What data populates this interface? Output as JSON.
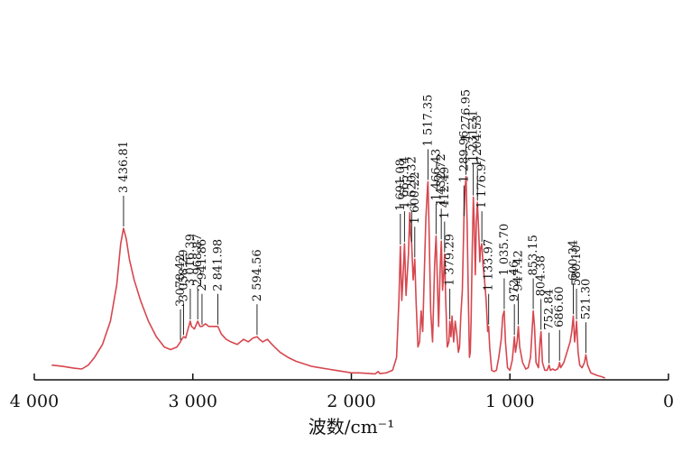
{
  "chart_data": {
    "type": "line",
    "title": "",
    "xlabel": "波数/cm⁻¹",
    "ylabel": "",
    "xlim": [
      4000,
      0
    ],
    "ylim": [
      0,
      100
    ],
    "grid": false,
    "legend": "none",
    "line_color": "#d6474f",
    "x_ticks": [
      {
        "value": 4000,
        "label": "4 000"
      },
      {
        "value": 3000,
        "label": "3 000"
      },
      {
        "value": 2000,
        "label": "2 000"
      },
      {
        "value": 1000,
        "label": "1 000"
      },
      {
        "value": 0,
        "label": "0"
      }
    ],
    "spectrum": [
      [
        3890,
        5
      ],
      [
        3820,
        4.5
      ],
      [
        3750,
        3.8
      ],
      [
        3700,
        3.5
      ],
      [
        3660,
        5
      ],
      [
        3620,
        8
      ],
      [
        3570,
        13
      ],
      [
        3520,
        22
      ],
      [
        3480,
        36
      ],
      [
        3455,
        52
      ],
      [
        3437,
        58
      ],
      [
        3420,
        54
      ],
      [
        3400,
        46
      ],
      [
        3370,
        38
      ],
      [
        3330,
        30
      ],
      [
        3280,
        22
      ],
      [
        3230,
        16
      ],
      [
        3180,
        12
      ],
      [
        3140,
        11
      ],
      [
        3100,
        12
      ],
      [
        3078,
        14
      ],
      [
        3070,
        15
      ],
      [
        3058,
        16
      ],
      [
        3045,
        15.5
      ],
      [
        3030,
        19
      ],
      [
        3016,
        22
      ],
      [
        3008,
        20
      ],
      [
        2990,
        19
      ],
      [
        2969,
        22
      ],
      [
        2955,
        20
      ],
      [
        2942,
        20
      ],
      [
        2920,
        21
      ],
      [
        2900,
        20
      ],
      [
        2870,
        20
      ],
      [
        2842,
        20
      ],
      [
        2820,
        17
      ],
      [
        2790,
        15
      ],
      [
        2760,
        14
      ],
      [
        2720,
        13
      ],
      [
        2680,
        15
      ],
      [
        2650,
        14
      ],
      [
        2620,
        15.5
      ],
      [
        2595,
        16
      ],
      [
        2580,
        15
      ],
      [
        2560,
        14
      ],
      [
        2530,
        15
      ],
      [
        2500,
        13
      ],
      [
        2450,
        10
      ],
      [
        2400,
        8
      ],
      [
        2350,
        6.5
      ],
      [
        2300,
        5.5
      ],
      [
        2250,
        4.5
      ],
      [
        2200,
        4
      ],
      [
        2150,
        3.5
      ],
      [
        2100,
        3
      ],
      [
        2050,
        2.5
      ],
      [
        2000,
        2
      ],
      [
        1950,
        2
      ],
      [
        1900,
        1.8
      ],
      [
        1850,
        1.6
      ],
      [
        1830,
        2.5
      ],
      [
        1820,
        1.7
      ],
      [
        1780,
        2
      ],
      [
        1740,
        3
      ],
      [
        1715,
        8
      ],
      [
        1700,
        30
      ],
      [
        1691,
        51
      ],
      [
        1682,
        30
      ],
      [
        1675,
        38
      ],
      [
        1665,
        52
      ],
      [
        1655,
        32
      ],
      [
        1640,
        48
      ],
      [
        1632,
        64
      ],
      [
        1627,
        56
      ],
      [
        1620,
        52
      ],
      [
        1610,
        38
      ],
      [
        1600,
        46
      ],
      [
        1592,
        30
      ],
      [
        1580,
        12
      ],
      [
        1570,
        14
      ],
      [
        1560,
        26
      ],
      [
        1550,
        18
      ],
      [
        1540,
        40
      ],
      [
        1530,
        62
      ],
      [
        1520,
        74
      ],
      [
        1517,
        76
      ],
      [
        1510,
        58
      ],
      [
        1500,
        26
      ],
      [
        1488,
        14
      ],
      [
        1475,
        44
      ],
      [
        1466,
        55
      ],
      [
        1458,
        38
      ],
      [
        1450,
        20
      ],
      [
        1440,
        42
      ],
      [
        1433,
        53
      ],
      [
        1425,
        34
      ],
      [
        1418,
        40
      ],
      [
        1412,
        48
      ],
      [
        1405,
        30
      ],
      [
        1395,
        12
      ],
      [
        1385,
        14
      ],
      [
        1379,
        22
      ],
      [
        1372,
        16
      ],
      [
        1365,
        24
      ],
      [
        1355,
        14
      ],
      [
        1345,
        22
      ],
      [
        1335,
        17
      ],
      [
        1325,
        10
      ],
      [
        1318,
        12
      ],
      [
        1310,
        24
      ],
      [
        1300,
        34
      ],
      [
        1290,
        62
      ],
      [
        1284,
        72
      ],
      [
        1277,
        78
      ],
      [
        1270,
        60
      ],
      [
        1262,
        30
      ],
      [
        1255,
        8
      ],
      [
        1250,
        10
      ],
      [
        1245,
        22
      ],
      [
        1238,
        48
      ],
      [
        1231,
        70
      ],
      [
        1225,
        60
      ],
      [
        1218,
        40
      ],
      [
        1212,
        60
      ],
      [
        1205,
        68
      ],
      [
        1198,
        58
      ],
      [
        1190,
        45
      ],
      [
        1185,
        50
      ],
      [
        1177,
        52
      ],
      [
        1170,
        44
      ],
      [
        1160,
        38
      ],
      [
        1150,
        30
      ],
      [
        1140,
        18
      ],
      [
        1134,
        20
      ],
      [
        1128,
        12
      ],
      [
        1115,
        3
      ],
      [
        1100,
        2.5
      ],
      [
        1085,
        3
      ],
      [
        1070,
        8
      ],
      [
        1055,
        15
      ],
      [
        1045,
        24
      ],
      [
        1036,
        26
      ],
      [
        1028,
        14
      ],
      [
        1015,
        4
      ],
      [
        1000,
        3
      ],
      [
        985,
        7
      ],
      [
        972,
        16
      ],
      [
        965,
        10
      ],
      [
        955,
        14
      ],
      [
        947,
        20
      ],
      [
        938,
        12
      ],
      [
        920,
        6
      ],
      [
        900,
        3.5
      ],
      [
        885,
        4
      ],
      [
        870,
        8
      ],
      [
        853,
        26
      ],
      [
        845,
        20
      ],
      [
        835,
        6
      ],
      [
        820,
        4
      ],
      [
        810,
        14
      ],
      [
        804,
        18
      ],
      [
        795,
        6
      ],
      [
        780,
        3
      ],
      [
        765,
        3
      ],
      [
        753,
        5
      ],
      [
        745,
        3
      ],
      [
        730,
        3.5
      ],
      [
        715,
        3
      ],
      [
        700,
        3.5
      ],
      [
        692,
        4.5
      ],
      [
        687,
        6
      ],
      [
        680,
        4
      ],
      [
        660,
        6
      ],
      [
        640,
        10
      ],
      [
        620,
        14
      ],
      [
        610,
        18
      ],
      [
        600,
        24
      ],
      [
        592,
        14
      ],
      [
        585,
        18
      ],
      [
        580,
        22
      ],
      [
        570,
        10
      ],
      [
        560,
        5
      ],
      [
        545,
        4
      ],
      [
        530,
        6
      ],
      [
        521,
        9
      ],
      [
        510,
        5
      ],
      [
        490,
        2
      ],
      [
        470,
        1.5
      ],
      [
        450,
        1
      ],
      [
        420,
        0.5
      ],
      [
        400,
        0
      ]
    ],
    "peaks": [
      {
        "label": "3 436.81",
        "x": 3437,
        "y": 58
      },
      {
        "label": "3 078.42",
        "x": 3078,
        "y": 14
      },
      {
        "label": "3 058.29",
        "x": 3058,
        "y": 16
      },
      {
        "label": "3 016.39",
        "x": 3016,
        "y": 22
      },
      {
        "label": "2 968.87",
        "x": 2969,
        "y": 22
      },
      {
        "label": "2 941.86",
        "x": 2942,
        "y": 20
      },
      {
        "label": "2 841.98",
        "x": 2842,
        "y": 20
      },
      {
        "label": "2 594.56",
        "x": 2595,
        "y": 16
      },
      {
        "label": "1 691.08",
        "x": 1691,
        "y": 51
      },
      {
        "label": "1 665.14",
        "x": 1665,
        "y": 52
      },
      {
        "label": "1 620.32",
        "x": 1620,
        "y": 52
      },
      {
        "label": "1 600.22",
        "x": 1600,
        "y": 46
      },
      {
        "label": "1 517.35",
        "x": 1517,
        "y": 76
      },
      {
        "label": "1 466.43",
        "x": 1466,
        "y": 55
      },
      {
        "label": "1 432.72",
        "x": 1433,
        "y": 53
      },
      {
        "label": "1 412.49",
        "x": 1412,
        "y": 48
      },
      {
        "label": "1 379.29",
        "x": 1379,
        "y": 22
      },
      {
        "label": "1 289.96",
        "x": 1290,
        "y": 62
      },
      {
        "label": "1 276.95",
        "x": 1277,
        "y": 78
      },
      {
        "label": "1 231.31",
        "x": 1231,
        "y": 70
      },
      {
        "label": "1 204.53",
        "x": 1205,
        "y": 68
      },
      {
        "label": "1 176.97",
        "x": 1177,
        "y": 52
      },
      {
        "label": "1 133.97",
        "x": 1134,
        "y": 20
      },
      {
        "label": "1 035.70",
        "x": 1036,
        "y": 26
      },
      {
        "label": "972.46",
        "x": 972,
        "y": 16
      },
      {
        "label": "947.42",
        "x": 947,
        "y": 20
      },
      {
        "label": "853.15",
        "x": 853,
        "y": 26
      },
      {
        "label": "804.38",
        "x": 804,
        "y": 18
      },
      {
        "label": "752.84",
        "x": 753,
        "y": 5
      },
      {
        "label": "686.60",
        "x": 687,
        "y": 6
      },
      {
        "label": "600.34",
        "x": 600,
        "y": 24
      },
      {
        "label": "580.10",
        "x": 580,
        "y": 22
      },
      {
        "label": "521.30",
        "x": 521,
        "y": 9
      }
    ]
  }
}
